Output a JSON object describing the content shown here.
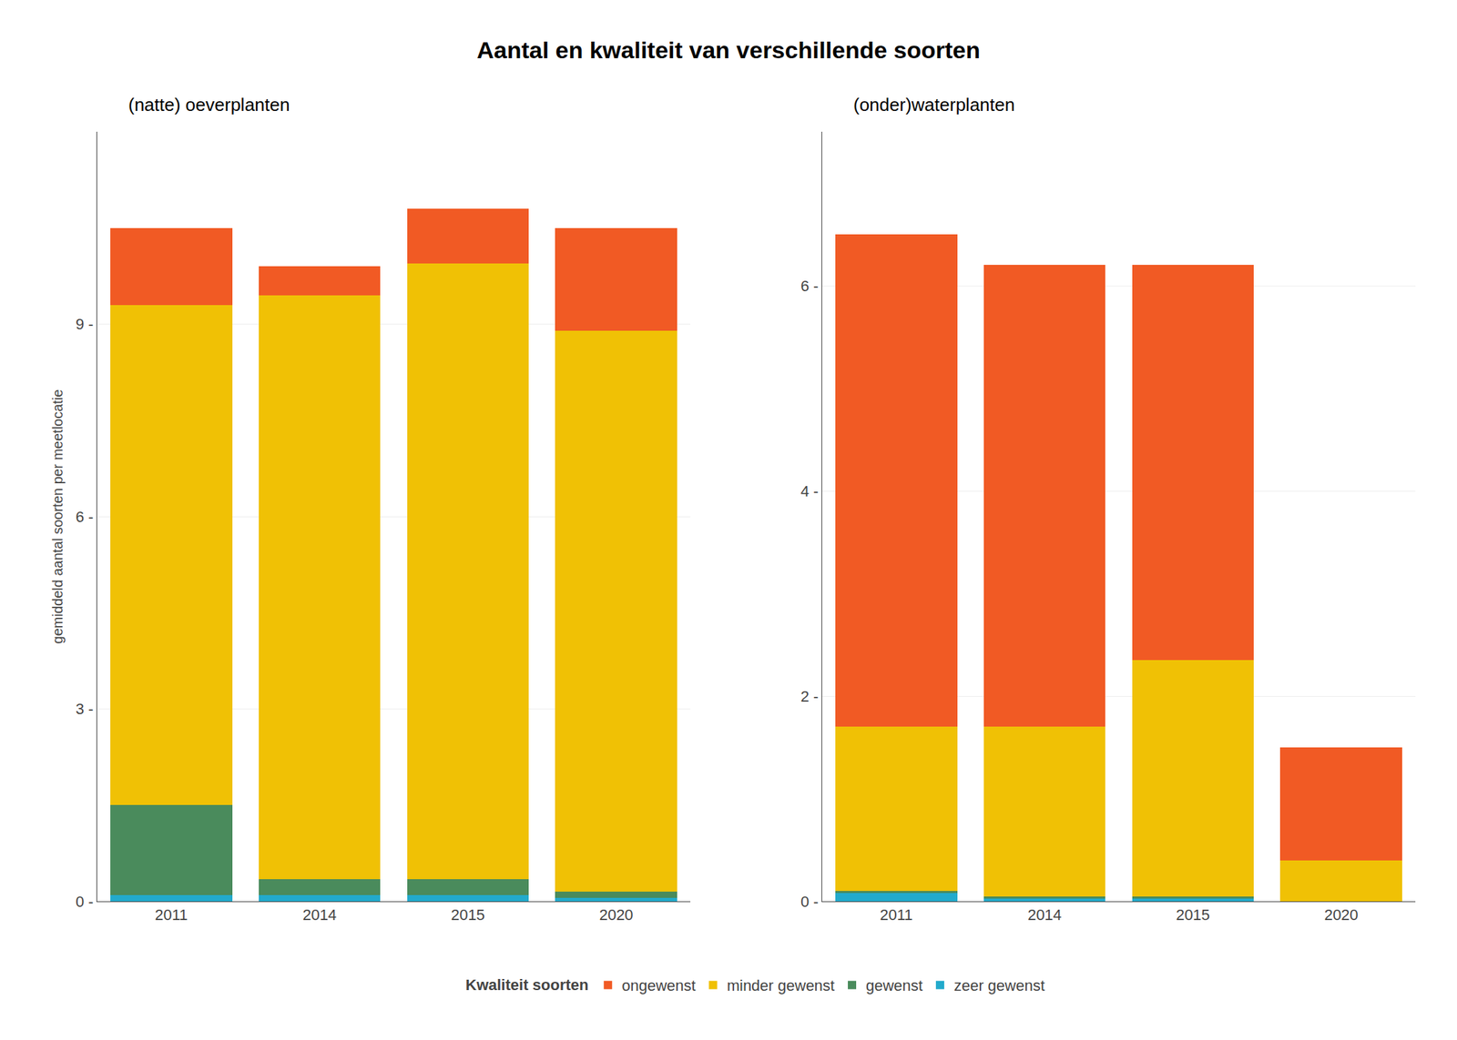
{
  "chart_data": [
    {
      "type": "bar",
      "stacked": true,
      "title": "Aantal en kwaliteit van verschillende soorten",
      "subtitle": "(natte) oeverplanten",
      "ylabel": "gemiddeld aantal soorten per meetlocatie",
      "categories": [
        "2011",
        "2014",
        "2015",
        "2020"
      ],
      "series": [
        {
          "name": "zeer gewenst",
          "color": "#22AACC",
          "values": [
            0.1,
            0.1,
            0.1,
            0.05
          ]
        },
        {
          "name": "gewenst",
          "color": "#4A8B5C",
          "values": [
            1.4,
            0.25,
            0.25,
            0.1
          ]
        },
        {
          "name": "minder gewenst",
          "color": "#F0C105",
          "values": [
            7.8,
            9.1,
            9.6,
            8.75
          ]
        },
        {
          "name": "ongewenst",
          "color": "#F15A24",
          "values": [
            1.2,
            0.45,
            0.85,
            1.6
          ]
        }
      ],
      "ylim": [
        0,
        12
      ],
      "yticks": [
        {
          "value": 0,
          "label": "0 -"
        },
        {
          "value": 3,
          "label": "3 -"
        },
        {
          "value": 6,
          "label": "6 -"
        },
        {
          "value": 9,
          "label": "9 -"
        }
      ],
      "grid": true,
      "legend": "bottom",
      "legend_title": "Kwaliteit soorten"
    },
    {
      "type": "bar",
      "stacked": true,
      "subtitle": "(onder)waterplanten",
      "categories": [
        "2011",
        "2014",
        "2015",
        "2020"
      ],
      "series": [
        {
          "name": "zeer gewenst",
          "color": "#22AACC",
          "values": [
            0.08,
            0.03,
            0.03,
            0.0
          ]
        },
        {
          "name": "gewenst",
          "color": "#4A8B5C",
          "values": [
            0.02,
            0.02,
            0.02,
            0.0
          ]
        },
        {
          "name": "minder gewenst",
          "color": "#F0C105",
          "values": [
            1.6,
            1.65,
            2.3,
            0.4
          ]
        },
        {
          "name": "ongewenst",
          "color": "#F15A24",
          "values": [
            4.8,
            4.5,
            3.85,
            1.1
          ]
        }
      ],
      "ylim": [
        0,
        7.5
      ],
      "yticks": [
        {
          "value": 0,
          "label": "0 -"
        },
        {
          "value": 2,
          "label": "2 -"
        },
        {
          "value": 4,
          "label": "4 -"
        },
        {
          "value": 6,
          "label": "6 -"
        }
      ],
      "grid": true
    }
  ]
}
